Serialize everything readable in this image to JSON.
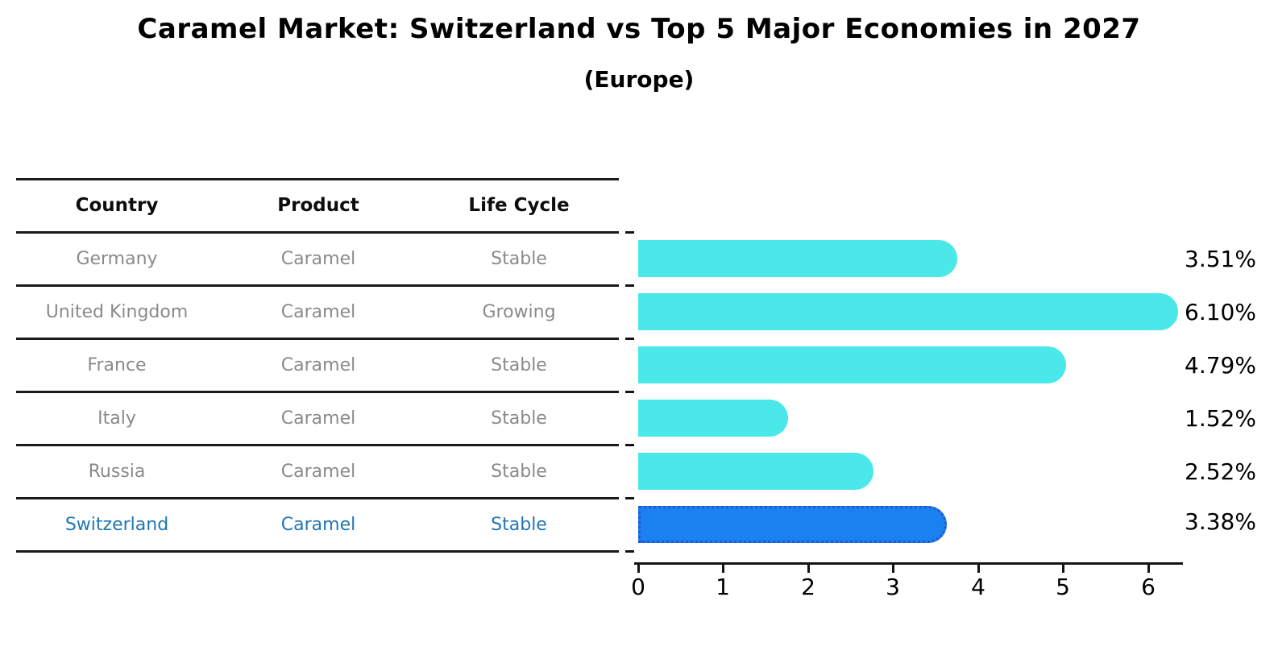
{
  "chart_data": {
    "type": "bar",
    "orientation": "horizontal",
    "title": "Caramel Market: Switzerland vs Top 5 Major Economies in 2027",
    "subtitle": "(Europe)",
    "categories": [
      "Germany",
      "United Kingdom",
      "France",
      "Italy",
      "Russia",
      "Switzerland"
    ],
    "values": [
      3.51,
      6.1,
      4.79,
      1.52,
      2.52,
      3.38
    ],
    "value_labels": [
      "3.51%",
      "6.10%",
      "4.79%",
      "1.52%",
      "2.52%",
      "3.38%"
    ],
    "highlighted_category": "Switzerland",
    "x_ticks": [
      "0",
      "1",
      "2",
      "3",
      "4",
      "5",
      "6"
    ],
    "xlim": [
      0,
      6.45
    ],
    "grid": false,
    "legend": false,
    "bar_color": "#4ae8e8",
    "highlight_bar_color": "#1b80f0",
    "highlight_border_color": "#2359cf"
  },
  "table": {
    "headers": {
      "country": "Country",
      "product": "Product",
      "life_cycle": "Life Cycle"
    },
    "rows": [
      {
        "country": "Germany",
        "product": "Caramel",
        "life_cycle": "Stable"
      },
      {
        "country": "United Kingdom",
        "product": "Caramel",
        "life_cycle": "Growing"
      },
      {
        "country": "France",
        "product": "Caramel",
        "life_cycle": "Stable"
      },
      {
        "country": "Italy",
        "product": "Caramel",
        "life_cycle": "Stable"
      },
      {
        "country": "Russia",
        "product": "Caramel",
        "life_cycle": "Stable"
      },
      {
        "country": "Switzerland",
        "product": "Caramel",
        "life_cycle": "Stable"
      }
    ],
    "highlight_row_color": "#1f77b4",
    "body_text_color": "#8a8a8a"
  }
}
